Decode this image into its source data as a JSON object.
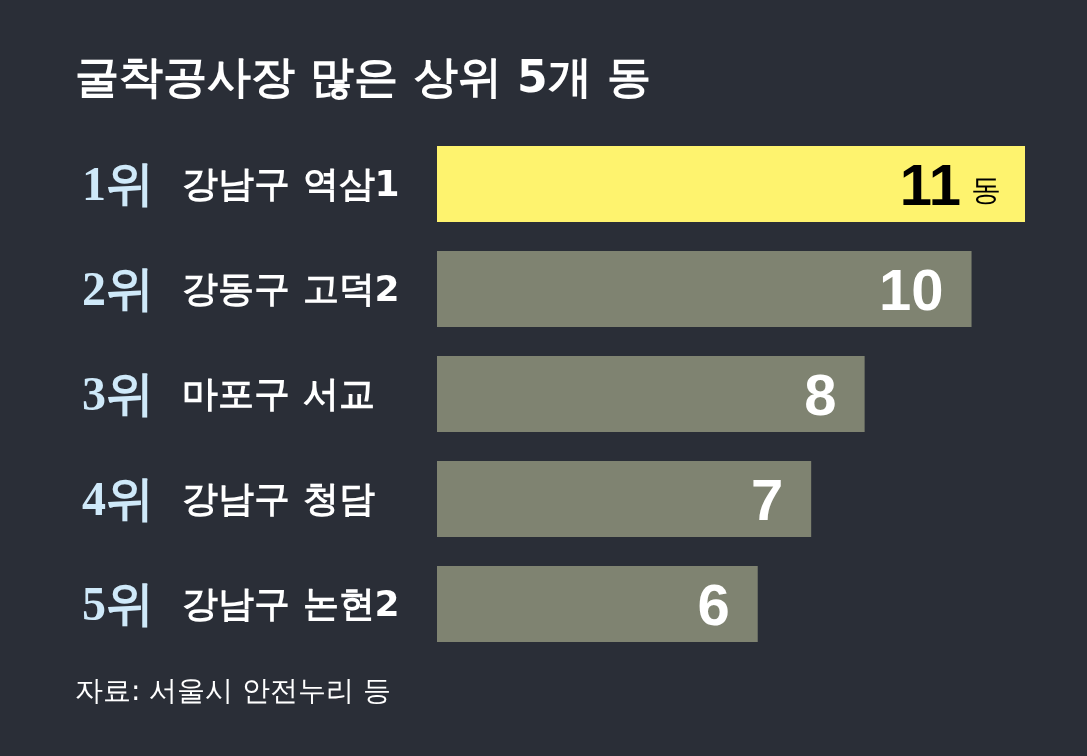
{
  "chart_data": {
    "type": "bar",
    "orientation": "horizontal",
    "title": "굴착공사장 많은 상위 5개 동",
    "categories": [
      "1위 강남구 역삼1",
      "2위 강동구 고덕2",
      "3위 마포구 서교",
      "4위 강남구 청담",
      "5위 강남구 논현2"
    ],
    "values": [
      11,
      10,
      8,
      7,
      6
    ],
    "colors": [
      "#fef36e",
      "#7f8371",
      "#7f8371",
      "#7f8371",
      "#7f8371"
    ],
    "value_labels": [
      "11동",
      "10",
      "8",
      "7",
      "6"
    ],
    "annotations": [
      "자료: 서울시 안전누리 등"
    ]
  }
}
